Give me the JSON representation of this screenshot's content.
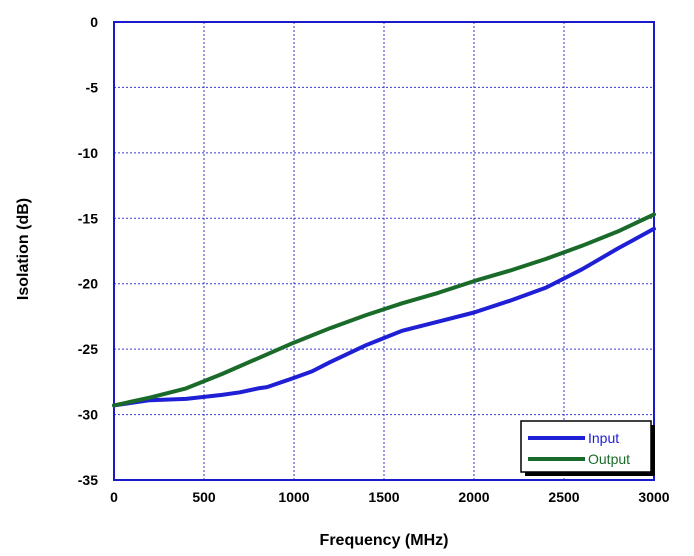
{
  "chart_data": {
    "type": "line",
    "title": "",
    "xlabel": "Frequency (MHz)",
    "ylabel": "Isolation (dB)",
    "xlim": [
      0,
      3000
    ],
    "ylim": [
      -35,
      0
    ],
    "xticks": [
      "0",
      "500",
      "1000",
      "1500",
      "2000",
      "2500",
      "3000"
    ],
    "yticks": [
      "0",
      "-5",
      "-10",
      "-15",
      "-20",
      "-25",
      "-30",
      "-35"
    ],
    "grid": true,
    "legend_position": "bottom-right",
    "series": [
      {
        "name": "Input",
        "color": "#1f1fd6",
        "x": [
          0,
          200,
          400,
          600,
          700,
          800,
          850,
          1000,
          1100,
          1200,
          1400,
          1600,
          1800,
          2000,
          2200,
          2400,
          2600,
          2800,
          3000
        ],
        "y": [
          -29.3,
          -28.9,
          -28.8,
          -28.5,
          -28.3,
          -28.0,
          -27.9,
          -27.2,
          -26.7,
          -26.0,
          -24.7,
          -23.6,
          -22.9,
          -22.2,
          -21.3,
          -20.3,
          -18.9,
          -17.3,
          -15.8
        ]
      },
      {
        "name": "Output",
        "color": "#1a6b2a",
        "x": [
          0,
          200,
          400,
          600,
          800,
          1000,
          1200,
          1400,
          1600,
          1800,
          2000,
          2200,
          2400,
          2600,
          2800,
          3000
        ],
        "y": [
          -29.3,
          -28.7,
          -28.0,
          -26.9,
          -25.7,
          -24.5,
          -23.4,
          -22.4,
          -21.5,
          -20.7,
          -19.8,
          -19.0,
          -18.1,
          -17.1,
          -16.0,
          -14.7
        ]
      }
    ]
  }
}
